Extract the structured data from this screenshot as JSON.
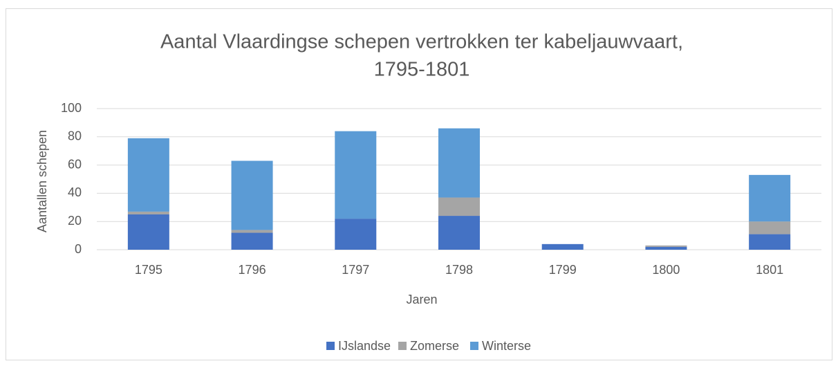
{
  "chart_data": {
    "type": "stacked_bar",
    "title": [
      "Aantal Vlaardingse schepen vertrokken ter kabeljauwvaart,",
      "1795-1801"
    ],
    "x_label": "Jaren",
    "y_label": "Aantallen schepen",
    "categories": [
      "1795",
      "1796",
      "1797",
      "1798",
      "1799",
      "1800",
      "1801"
    ],
    "series": [
      {
        "name": "IJslandse",
        "color": "#4472c4",
        "values": [
          25,
          12,
          22,
          24,
          4,
          2,
          11
        ]
      },
      {
        "name": "Zomerse",
        "color": "#a5a5a5",
        "values": [
          2,
          2,
          0,
          13,
          0,
          1,
          9
        ]
      },
      {
        "name": "Winterse",
        "color": "#5b9bd5",
        "values": [
          52,
          49,
          62,
          49,
          0,
          0,
          33
        ]
      }
    ],
    "ylim": [
      0,
      100
    ],
    "yticks": [
      0,
      20,
      40,
      60,
      80,
      100
    ],
    "grid": true,
    "legend": "bottom"
  }
}
